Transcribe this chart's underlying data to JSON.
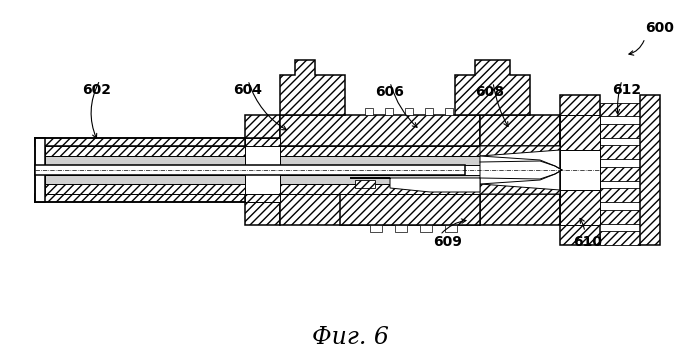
{
  "title": "Фиг. 6",
  "label_600": "600",
  "label_602": "602",
  "label_604": "604",
  "label_606": "606",
  "label_608": "608",
  "label_609": "609",
  "label_610": "610",
  "label_612": "612",
  "bg_color": "#ffffff",
  "line_color": "#000000",
  "title_fontsize": 17,
  "label_fontsize": 10
}
